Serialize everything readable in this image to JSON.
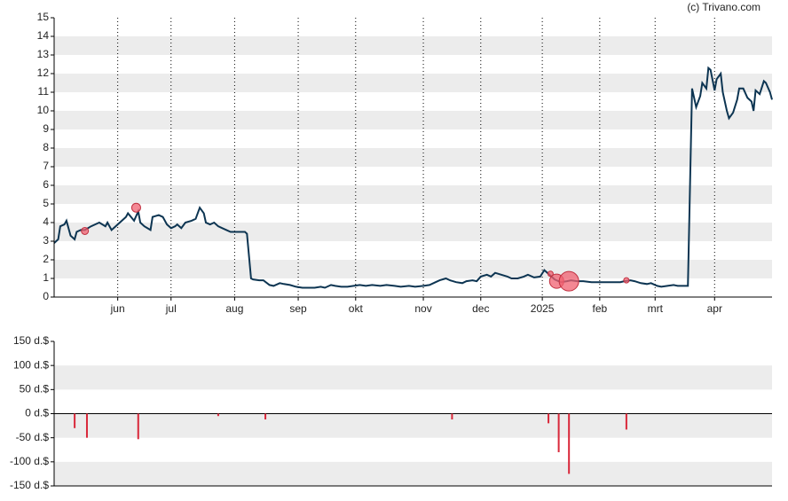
{
  "source": "(c) Trivano.com",
  "chart_data": [
    {
      "type": "line",
      "color": "#0d3552",
      "band_color": "#ececec",
      "xlim": [
        0,
        350
      ],
      "ylim": [
        0,
        15
      ],
      "xticks": [
        {
          "value": 31,
          "label": "jun"
        },
        {
          "value": 57,
          "label": "jul"
        },
        {
          "value": 88,
          "label": "aug"
        },
        {
          "value": 119,
          "label": "sep"
        },
        {
          "value": 147,
          "label": "okt"
        },
        {
          "value": 180,
          "label": "nov"
        },
        {
          "value": 208,
          "label": "dec"
        },
        {
          "value": 238,
          "label": "2025"
        },
        {
          "value": 266,
          "label": "feb"
        },
        {
          "value": 293,
          "label": "mrt"
        },
        {
          "value": 322,
          "label": "apr"
        }
      ],
      "yticks": [
        0,
        1,
        2,
        3,
        4,
        5,
        6,
        7,
        8,
        9,
        10,
        11,
        12,
        13,
        14,
        15
      ],
      "x": [
        0,
        2,
        3,
        5,
        6,
        8,
        10,
        11,
        13,
        15,
        18,
        20,
        22,
        25,
        26,
        28,
        30,
        32,
        35,
        36,
        39,
        41,
        42,
        44,
        47,
        48,
        51,
        53,
        55,
        57,
        59,
        60,
        62,
        64,
        67,
        69,
        71,
        73,
        74,
        76,
        78,
        80,
        82,
        84,
        86,
        88,
        90,
        93,
        94,
        96,
        97,
        100,
        102,
        105,
        107,
        110,
        112,
        115,
        118,
        121,
        124,
        127,
        130,
        132,
        135,
        137,
        140,
        143,
        146,
        149,
        152,
        155,
        159,
        162,
        166,
        169,
        173,
        176,
        180,
        183,
        186,
        188,
        191,
        193,
        196,
        199,
        201,
        204,
        206,
        208,
        211,
        213,
        215,
        218,
        221,
        223,
        226,
        229,
        231,
        234,
        237,
        239,
        242,
        244,
        247,
        250,
        252,
        255,
        258,
        262,
        265,
        269,
        272,
        276,
        278,
        281,
        283,
        286,
        289,
        291,
        294,
        296,
        299,
        302,
        304,
        307,
        309,
        311,
        313,
        315,
        316,
        318,
        319,
        320,
        322,
        323,
        325,
        326,
        328,
        329,
        331,
        333,
        334,
        336,
        338,
        340,
        341,
        342,
        344,
        346,
        347,
        349,
        350
      ],
      "values": [
        2.9,
        3.1,
        3.8,
        3.9,
        4.1,
        3.3,
        3.1,
        3.5,
        3.6,
        3.6,
        3.8,
        3.9,
        4.0,
        3.8,
        4.0,
        3.6,
        3.8,
        4.0,
        4.3,
        4.5,
        4.1,
        4.6,
        4.0,
        3.8,
        3.6,
        4.3,
        4.4,
        4.3,
        3.9,
        3.7,
        3.8,
        3.9,
        3.7,
        4.0,
        4.1,
        4.2,
        4.8,
        4.5,
        4.0,
        3.9,
        4.0,
        3.8,
        3.7,
        3.6,
        3.5,
        3.5,
        3.5,
        3.5,
        3.4,
        1.0,
        0.95,
        0.9,
        0.9,
        0.65,
        0.6,
        0.75,
        0.7,
        0.65,
        0.55,
        0.5,
        0.5,
        0.5,
        0.55,
        0.5,
        0.65,
        0.6,
        0.55,
        0.55,
        0.6,
        0.65,
        0.6,
        0.65,
        0.6,
        0.65,
        0.6,
        0.55,
        0.6,
        0.55,
        0.6,
        0.65,
        0.8,
        0.9,
        1.0,
        0.9,
        0.8,
        0.75,
        0.85,
        0.9,
        0.85,
        1.1,
        1.2,
        1.1,
        1.3,
        1.2,
        1.1,
        1.0,
        1.0,
        1.1,
        1.2,
        1.05,
        1.1,
        1.45,
        1.15,
        0.95,
        0.8,
        0.85,
        0.9,
        0.85,
        0.85,
        0.8,
        0.8,
        0.8,
        0.8,
        0.8,
        0.85,
        0.9,
        0.85,
        0.75,
        0.7,
        0.75,
        0.6,
        0.55,
        0.6,
        0.65,
        0.6,
        0.6,
        0.6,
        11.2,
        10.2,
        10.8,
        11.5,
        11.2,
        12.3,
        12.2,
        11.1,
        11.7,
        12.0,
        11.0,
        10.0,
        9.6,
        9.9,
        10.6,
        11.2,
        11.2,
        10.7,
        10.5,
        10.0,
        11.1,
        10.9,
        11.6,
        11.5,
        11.0,
        10.6
      ],
      "bubbles": {
        "color": "#f06070",
        "x": [
          15,
          40,
          242,
          245,
          251,
          279
        ],
        "y": [
          3.55,
          4.8,
          1.25,
          0.85,
          0.85,
          0.9
        ],
        "sizes": [
          4,
          5,
          3,
          8,
          11,
          3
        ]
      }
    },
    {
      "type": "bar",
      "color": "#d9283a",
      "band_color": "#ececec",
      "xlim": [
        0,
        350
      ],
      "ylim": [
        -150,
        150
      ],
      "yticks": [
        {
          "value": 150,
          "label": "150 d.$"
        },
        {
          "value": 100,
          "label": "100 d.$"
        },
        {
          "value": 50,
          "label": "50 d.$"
        },
        {
          "value": 0,
          "label": "0 d.$"
        },
        {
          "value": -50,
          "label": "-50 d.$"
        },
        {
          "value": -100,
          "label": "-100 d.$"
        },
        {
          "value": -150,
          "label": "-150 d.$"
        }
      ],
      "x": [
        10,
        16,
        41,
        80,
        103,
        194,
        241,
        246,
        251,
        279
      ],
      "values": [
        -30,
        -50,
        -53,
        -5,
        -12,
        -12,
        -20,
        -80,
        -125,
        -33
      ]
    }
  ]
}
